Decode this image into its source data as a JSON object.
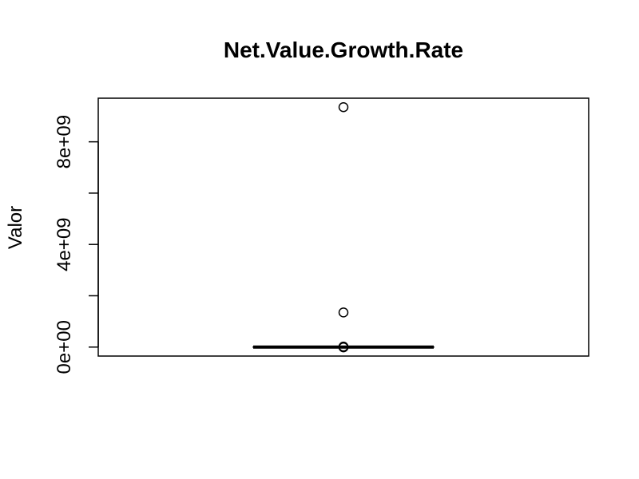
{
  "chart_data": {
    "type": "boxplot",
    "title": "Net.Value.Growth.Rate",
    "xlabel": "",
    "ylabel": "Valor",
    "ylim": [
      -350000000,
      9700000000
    ],
    "yticks": [
      0,
      2000000000,
      4000000000,
      6000000000,
      8000000000
    ],
    "ytick_labels": [
      "0e+00",
      "",
      "4e+09",
      "",
      "8e+09"
    ],
    "grid": false,
    "box": {
      "min": 0,
      "q1": 0,
      "median": 0,
      "q3": 0,
      "max": 0
    },
    "outliers": [
      9350000000,
      1350000000,
      20000000,
      0,
      -10000000
    ]
  }
}
